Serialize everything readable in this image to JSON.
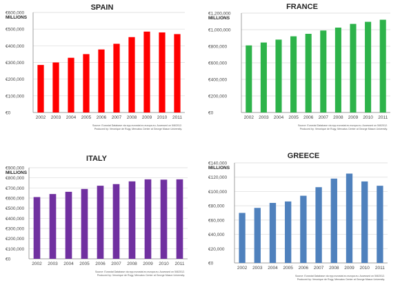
{
  "chart_data": [
    {
      "type": "bar",
      "title": "SPAIN",
      "unit_label": "MILLIONS",
      "categories": [
        "2002",
        "2003",
        "2004",
        "2005",
        "2006",
        "2007",
        "2008",
        "2009",
        "2010",
        "2011"
      ],
      "values": [
        285000,
        300000,
        328000,
        350000,
        378000,
        412000,
        452000,
        485000,
        480000,
        470000
      ],
      "ylim": [
        0,
        600000
      ],
      "yticks": [
        "€0",
        "€100,000",
        "€200,000",
        "€300,000",
        "€400,000",
        "€500,000",
        "€600,000"
      ],
      "color": "#ff0000",
      "grid": true,
      "source_line1": "Source: Eurostat Database via epp.eurostat.ec.europa.eu. Accessed on 5/8/2012.",
      "source_line2": "Produced by: Veronique de Rugy, Mercatus Center at George Mason University."
    },
    {
      "type": "bar",
      "title": "FRANCE",
      "unit_label": "MILLIONS",
      "categories": [
        "2002",
        "2003",
        "2004",
        "2005",
        "2006",
        "2007",
        "2008",
        "2009",
        "2010",
        "2011"
      ],
      "values": [
        810000,
        845000,
        880000,
        920000,
        950000,
        990000,
        1025000,
        1070000,
        1095000,
        1120000
      ],
      "ylim": [
        0,
        1200000
      ],
      "yticks": [
        "€0",
        "€200,000",
        "€400,000",
        "€600,000",
        "€800,000",
        "€1,000,000",
        "€1,200,000"
      ],
      "color": "#2db34a",
      "grid": true,
      "source_line1": "Source: Eurostat Database via epp.eurostat.ec.europa.eu. Accessed on 5/8/2012.",
      "source_line2": "Produced by: Veronique de Rugy, Mercatus Center at George Mason University."
    },
    {
      "type": "bar",
      "title": "ITALY",
      "unit_label": "MILLIONS",
      "categories": [
        "2002",
        "2003",
        "2004",
        "2005",
        "2006",
        "2007",
        "2008",
        "2009",
        "2010",
        "2011"
      ],
      "values": [
        610000,
        640000,
        662000,
        690000,
        722000,
        738000,
        765000,
        785000,
        782000,
        785000
      ],
      "ylim": [
        0,
        900000
      ],
      "yticks": [
        "€0",
        "€100,000",
        "€200,000",
        "€300,000",
        "€400,000",
        "€500,000",
        "€600,000",
        "€700,000",
        "€800,000",
        "€900,000"
      ],
      "color": "#7030a0",
      "grid": true,
      "source_line1": "Source: Eurostat Database via epp.eurostat.ec.europa.eu. Accessed on 5/8/2012.",
      "source_line2": "Produced by: Veronique de Rugy, Mercatus Center at George Mason University."
    },
    {
      "type": "bar",
      "title": "GREECE",
      "unit_label": "MILLIONS",
      "categories": [
        "2002",
        "2003",
        "2004",
        "2005",
        "2006",
        "2007",
        "2008",
        "2009",
        "2010",
        "2011"
      ],
      "values": [
        70000,
        77000,
        84000,
        86000,
        94000,
        106000,
        118000,
        125000,
        114000,
        108000
      ],
      "ylim": [
        0,
        140000
      ],
      "yticks": [
        "€0",
        "€20,000",
        "€40,000",
        "€60,000",
        "€80,000",
        "€100,000",
        "€120,000",
        "€140,000"
      ],
      "color": "#4f81bd",
      "grid": true,
      "source_line1": "Source: Eurostat Database via epp.eurostat.ec.europa.eu. Accessed on 5/8/2012.",
      "source_line2": "Produced by: Veronique de Rugy, Mercatus Center at George Mason University."
    }
  ]
}
